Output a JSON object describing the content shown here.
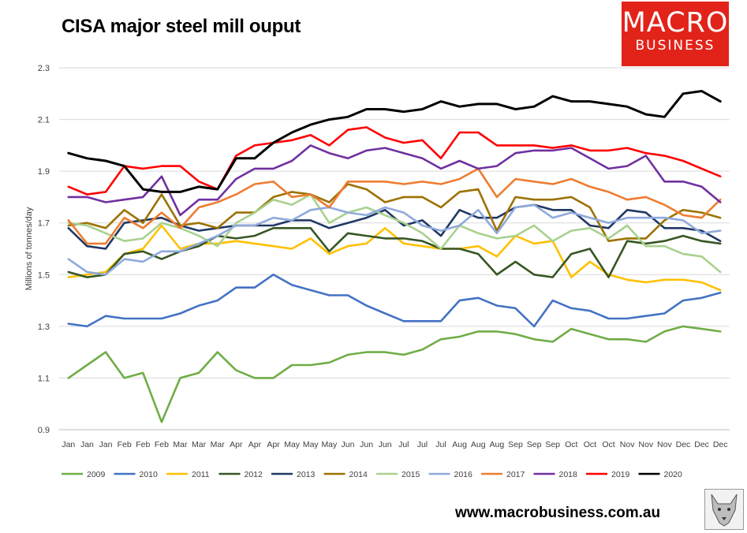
{
  "title": "CISA major steel mill ouput",
  "logo": {
    "line1": "MACRO",
    "line2": "BUSINESS"
  },
  "url": "www.macrobusiness.com.au",
  "chart_data": {
    "type": "line",
    "title": "CISA major steel mill ouput",
    "ylabel": "Millions of tonnes/day",
    "xlabel": "",
    "ylim": [
      0.9,
      2.3
    ],
    "yticks": [
      "0.9",
      "1.1",
      "1.3",
      "1.5",
      "1.7",
      "1.9",
      "2.1",
      "2.3"
    ],
    "categories": [
      "Jan",
      "Jan",
      "Jan",
      "Feb",
      "Feb",
      "Feb",
      "Mar",
      "Mar",
      "Mar",
      "Apr",
      "Apr",
      "Apr",
      "May",
      "May",
      "May",
      "Jun",
      "Jun",
      "Jun",
      "Jul",
      "Jul",
      "Jul",
      "Aug",
      "Aug",
      "Aug",
      "Sep",
      "Sep",
      "Sep",
      "Oct",
      "Oct",
      "Oct",
      "Nov",
      "Nov",
      "Nov",
      "Dec",
      "Dec",
      "Dec"
    ],
    "legend_position": "bottom",
    "series": [
      {
        "name": "2009",
        "color": "#70ad47",
        "values": [
          1.1,
          1.15,
          1.2,
          1.1,
          1.12,
          0.93,
          1.1,
          1.12,
          1.2,
          1.13,
          1.1,
          1.1,
          1.15,
          1.15,
          1.16,
          1.19,
          1.2,
          1.2,
          1.19,
          1.21,
          1.25,
          1.26,
          1.28,
          1.28,
          1.27,
          1.25,
          1.24,
          1.29,
          1.27,
          1.25,
          1.25,
          1.24,
          1.28,
          1.3,
          1.29,
          1.28
        ]
      },
      {
        "name": "2010",
        "color": "#4472c4",
        "values": [
          1.31,
          1.3,
          1.34,
          1.33,
          1.33,
          1.33,
          1.35,
          1.38,
          1.4,
          1.45,
          1.45,
          1.5,
          1.46,
          1.44,
          1.42,
          1.42,
          1.38,
          1.35,
          1.32,
          1.32,
          1.32,
          1.4,
          1.41,
          1.38,
          1.37,
          1.3,
          1.4,
          1.37,
          1.36,
          1.33,
          1.33,
          1.34,
          1.35,
          1.4,
          1.41,
          1.43
        ]
      },
      {
        "name": "2011",
        "color": "#ffc000",
        "values": [
          1.49,
          1.5,
          1.51,
          1.58,
          1.6,
          1.69,
          1.6,
          1.62,
          1.62,
          1.63,
          1.62,
          1.61,
          1.6,
          1.64,
          1.58,
          1.61,
          1.62,
          1.68,
          1.62,
          1.61,
          1.6,
          1.6,
          1.61,
          1.57,
          1.65,
          1.62,
          1.63,
          1.49,
          1.55,
          1.5,
          1.48,
          1.47,
          1.48,
          1.48,
          1.47,
          1.44
        ]
      },
      {
        "name": "2012",
        "color": "#375623",
        "values": [
          1.51,
          1.49,
          1.5,
          1.58,
          1.59,
          1.56,
          1.59,
          1.61,
          1.65,
          1.64,
          1.65,
          1.68,
          1.68,
          1.68,
          1.59,
          1.66,
          1.65,
          1.64,
          1.64,
          1.63,
          1.6,
          1.6,
          1.58,
          1.5,
          1.55,
          1.5,
          1.49,
          1.58,
          1.6,
          1.49,
          1.63,
          1.62,
          1.63,
          1.65,
          1.63,
          1.62
        ]
      },
      {
        "name": "2013",
        "color": "#203864",
        "values": [
          1.68,
          1.61,
          1.6,
          1.7,
          1.71,
          1.72,
          1.69,
          1.67,
          1.68,
          1.69,
          1.69,
          1.69,
          1.71,
          1.71,
          1.68,
          1.7,
          1.72,
          1.75,
          1.69,
          1.71,
          1.65,
          1.75,
          1.72,
          1.72,
          1.76,
          1.77,
          1.75,
          1.75,
          1.69,
          1.68,
          1.75,
          1.74,
          1.68,
          1.68,
          1.67,
          1.63
        ]
      },
      {
        "name": "2014",
        "color": "#9c7200",
        "values": [
          1.69,
          1.7,
          1.68,
          1.75,
          1.7,
          1.81,
          1.69,
          1.7,
          1.68,
          1.74,
          1.74,
          1.8,
          1.82,
          1.81,
          1.78,
          1.85,
          1.83,
          1.78,
          1.8,
          1.8,
          1.76,
          1.82,
          1.83,
          1.67,
          1.8,
          1.79,
          1.79,
          1.8,
          1.76,
          1.63,
          1.64,
          1.64,
          1.71,
          1.75,
          1.74,
          1.72
        ]
      },
      {
        "name": "2015",
        "color": "#a9d18e",
        "values": [
          1.7,
          1.69,
          1.66,
          1.63,
          1.64,
          1.7,
          1.68,
          1.65,
          1.61,
          1.7,
          1.74,
          1.79,
          1.77,
          1.81,
          1.7,
          1.74,
          1.76,
          1.73,
          1.7,
          1.66,
          1.6,
          1.69,
          1.66,
          1.64,
          1.65,
          1.69,
          1.63,
          1.67,
          1.68,
          1.64,
          1.69,
          1.61,
          1.61,
          1.58,
          1.57,
          1.51
        ]
      },
      {
        "name": "2016",
        "color": "#8faadc",
        "values": [
          1.56,
          1.51,
          1.5,
          1.56,
          1.55,
          1.59,
          1.59,
          1.62,
          1.65,
          1.69,
          1.69,
          1.72,
          1.71,
          1.75,
          1.76,
          1.74,
          1.73,
          1.76,
          1.74,
          1.69,
          1.67,
          1.69,
          1.75,
          1.66,
          1.76,
          1.77,
          1.72,
          1.74,
          1.72,
          1.7,
          1.72,
          1.72,
          1.72,
          1.71,
          1.66,
          1.67
        ]
      },
      {
        "name": "2017",
        "color": "#ed7d31",
        "values": [
          1.71,
          1.62,
          1.62,
          1.72,
          1.68,
          1.74,
          1.68,
          1.76,
          1.78,
          1.81,
          1.85,
          1.86,
          1.8,
          1.81,
          1.76,
          1.86,
          1.86,
          1.86,
          1.85,
          1.86,
          1.85,
          1.87,
          1.91,
          1.8,
          1.87,
          1.86,
          1.85,
          1.87,
          1.84,
          1.82,
          1.79,
          1.8,
          1.77,
          1.73,
          1.72,
          1.79
        ]
      },
      {
        "name": "2018",
        "color": "#7030a0",
        "values": [
          1.8,
          1.8,
          1.78,
          1.79,
          1.8,
          1.88,
          1.73,
          1.79,
          1.79,
          1.87,
          1.91,
          1.91,
          1.94,
          2.0,
          1.97,
          1.95,
          1.98,
          1.99,
          1.97,
          1.95,
          1.91,
          1.94,
          1.91,
          1.92,
          1.97,
          1.98,
          1.98,
          1.99,
          1.95,
          1.91,
          1.92,
          1.96,
          1.86,
          1.86,
          1.84,
          1.78
        ]
      },
      {
        "name": "2019",
        "color": "#ff0000",
        "values": [
          1.84,
          1.81,
          1.82,
          1.92,
          1.91,
          1.92,
          1.92,
          1.86,
          1.83,
          1.96,
          2.0,
          2.01,
          2.02,
          2.04,
          2.0,
          2.06,
          2.07,
          2.03,
          2.01,
          2.02,
          1.95,
          2.05,
          2.05,
          2.0,
          2.0,
          2.0,
          1.99,
          2.0,
          1.98,
          1.98,
          1.99,
          1.97,
          1.96,
          1.94,
          1.91,
          1.88
        ]
      },
      {
        "name": "2020",
        "color": "#000000",
        "values": [
          1.97,
          1.95,
          1.94,
          1.92,
          1.83,
          1.82,
          1.82,
          1.84,
          1.83,
          1.95,
          1.95,
          2.01,
          2.05,
          2.08,
          2.1,
          2.11,
          2.14,
          2.14,
          2.13,
          2.14,
          2.17,
          2.15,
          2.16,
          2.16,
          2.14,
          2.15,
          2.19,
          2.17,
          2.17,
          2.16,
          2.15,
          2.12,
          2.11,
          2.2,
          2.21,
          2.17
        ]
      }
    ]
  }
}
